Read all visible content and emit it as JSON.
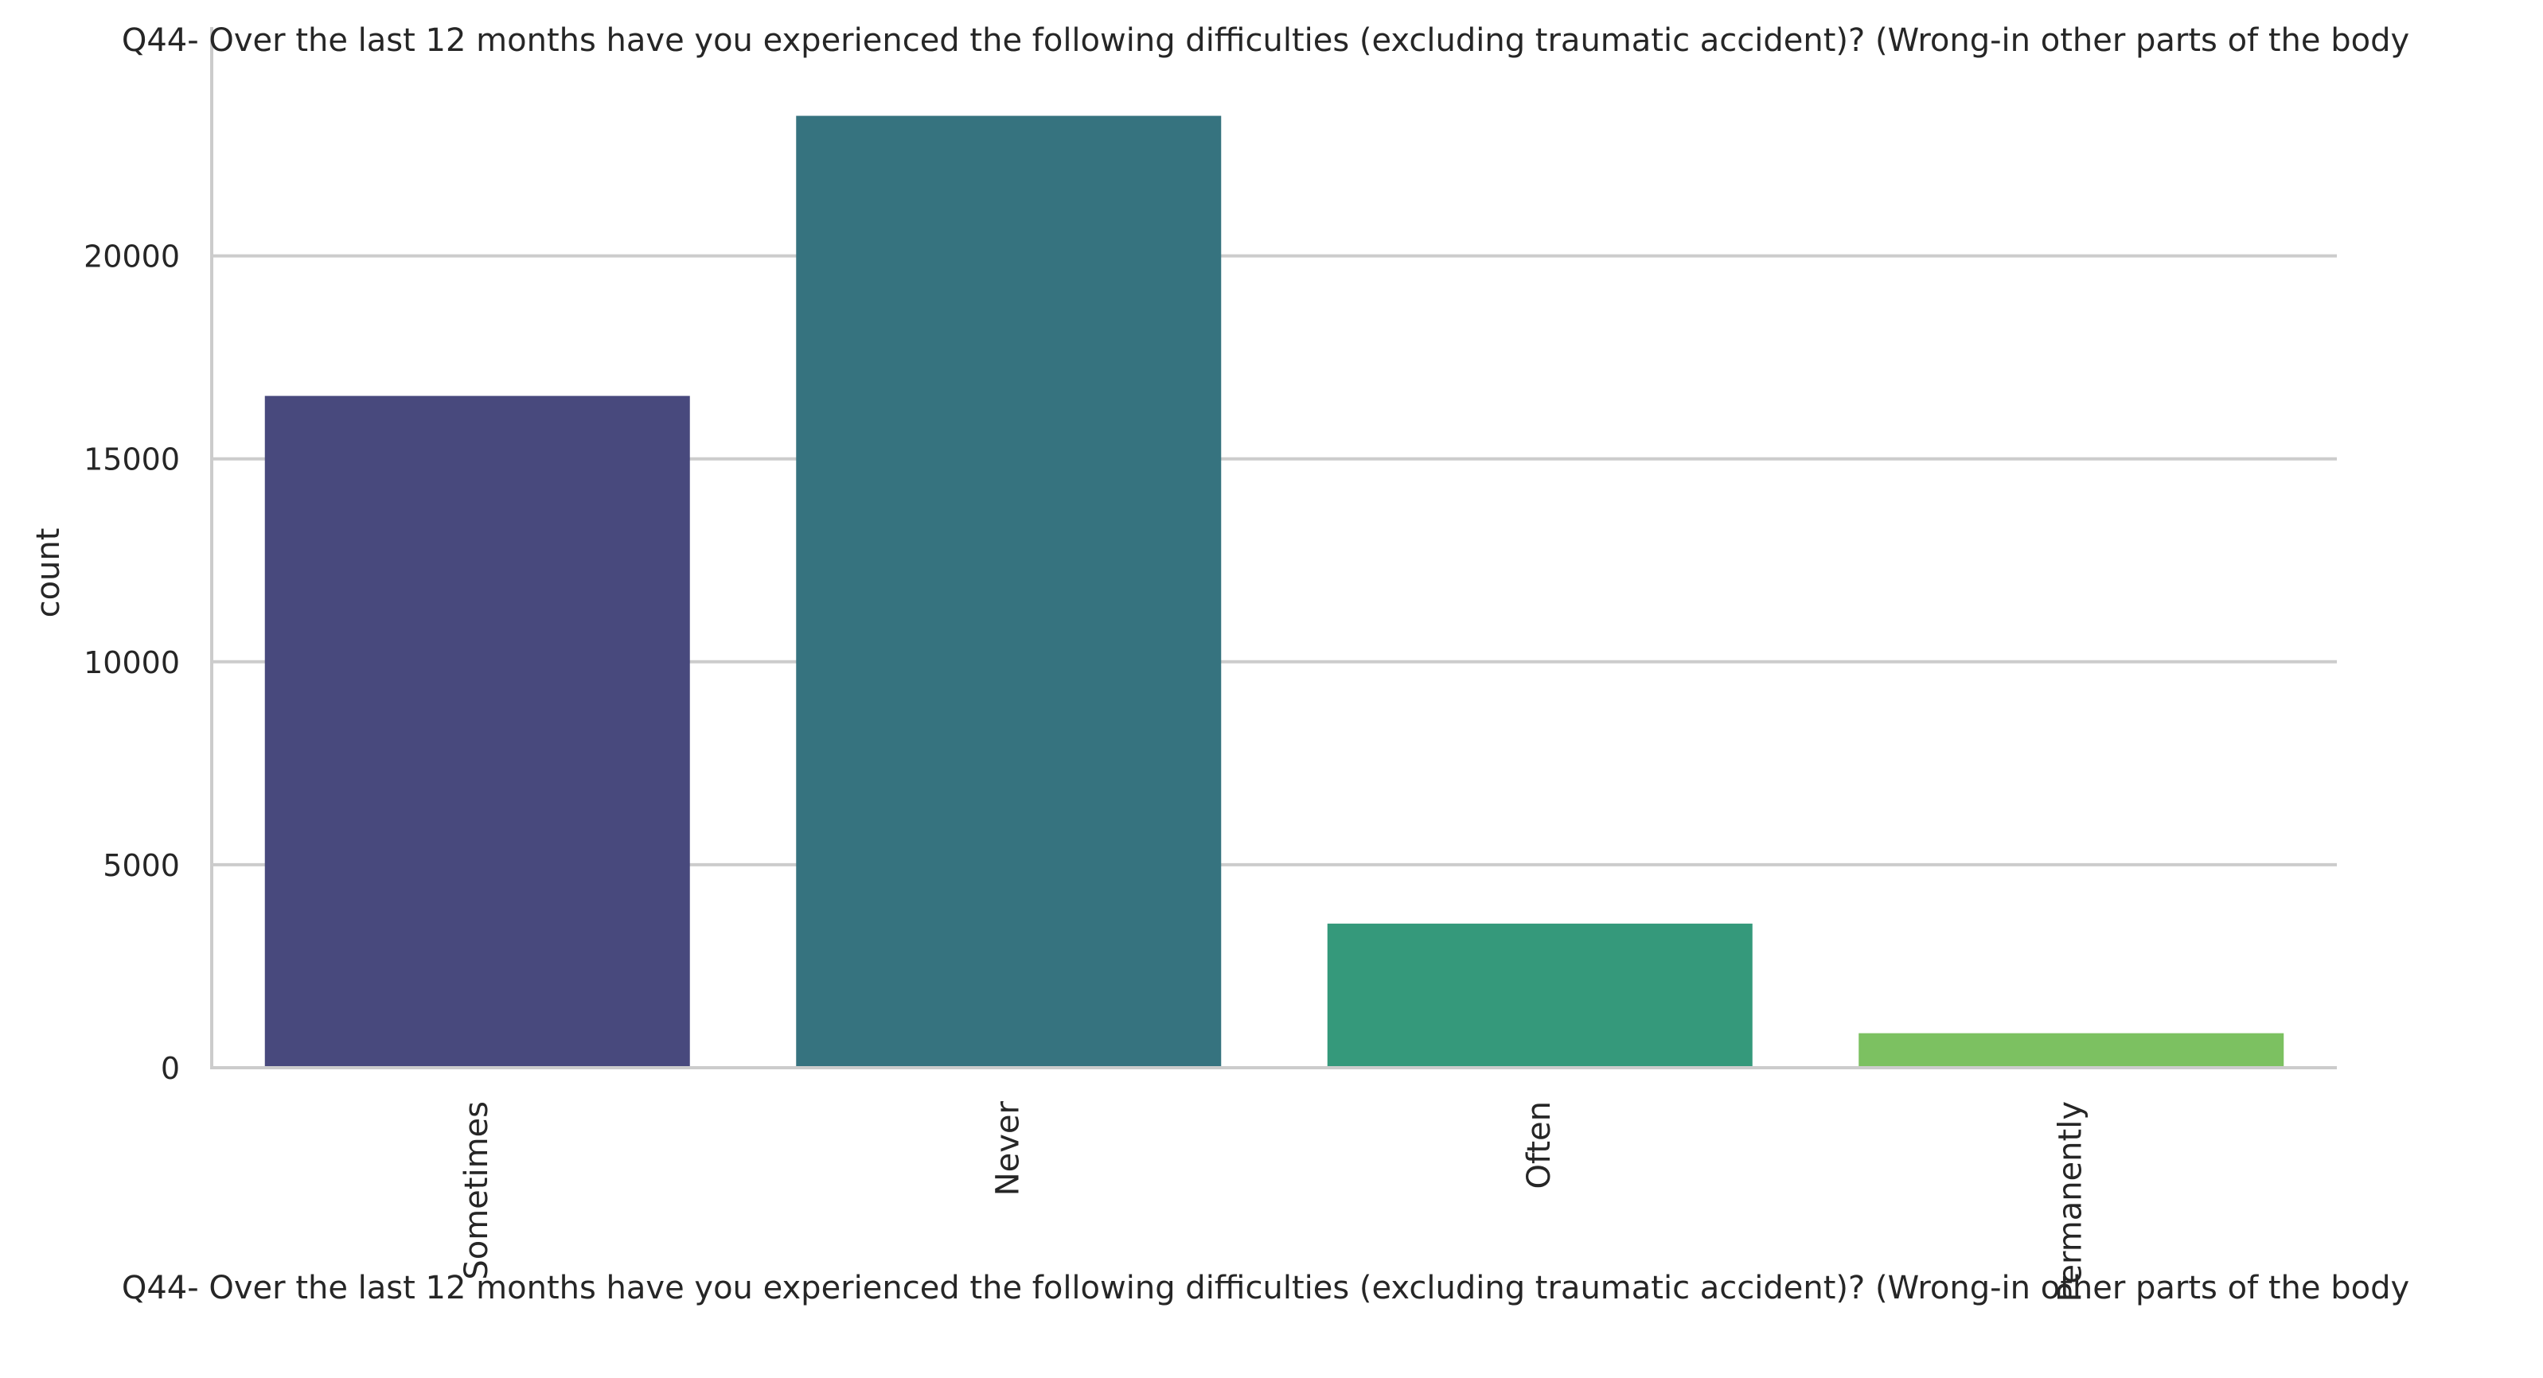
{
  "chart_data": {
    "type": "bar",
    "title": "Q44- Over the last 12 months have you experienced the following difficulties (excluding traumatic accident)? (Wrong-in other parts of the body",
    "xlabel": "Q44- Over the last 12 months have you experienced the following difficulties (excluding traumatic accident)? (Wrong-in other parts of the body",
    "ylabel": "count",
    "categories": [
      "Sometimes",
      "Never",
      "Often",
      "Permanently"
    ],
    "values": [
      16550,
      23450,
      3550,
      850
    ],
    "colors": [
      "#48497d",
      "#36737f",
      "#35997b",
      "#7cc161"
    ],
    "ylim": [
      0,
      24500
    ],
    "yticks": [
      0,
      5000,
      10000,
      15000,
      20000
    ],
    "ytick_labels": [
      "0",
      "5000",
      "10000",
      "15000",
      "20000"
    ],
    "grid": "y",
    "grid_color": "#cccccc",
    "axis_color": "#cccccc"
  }
}
